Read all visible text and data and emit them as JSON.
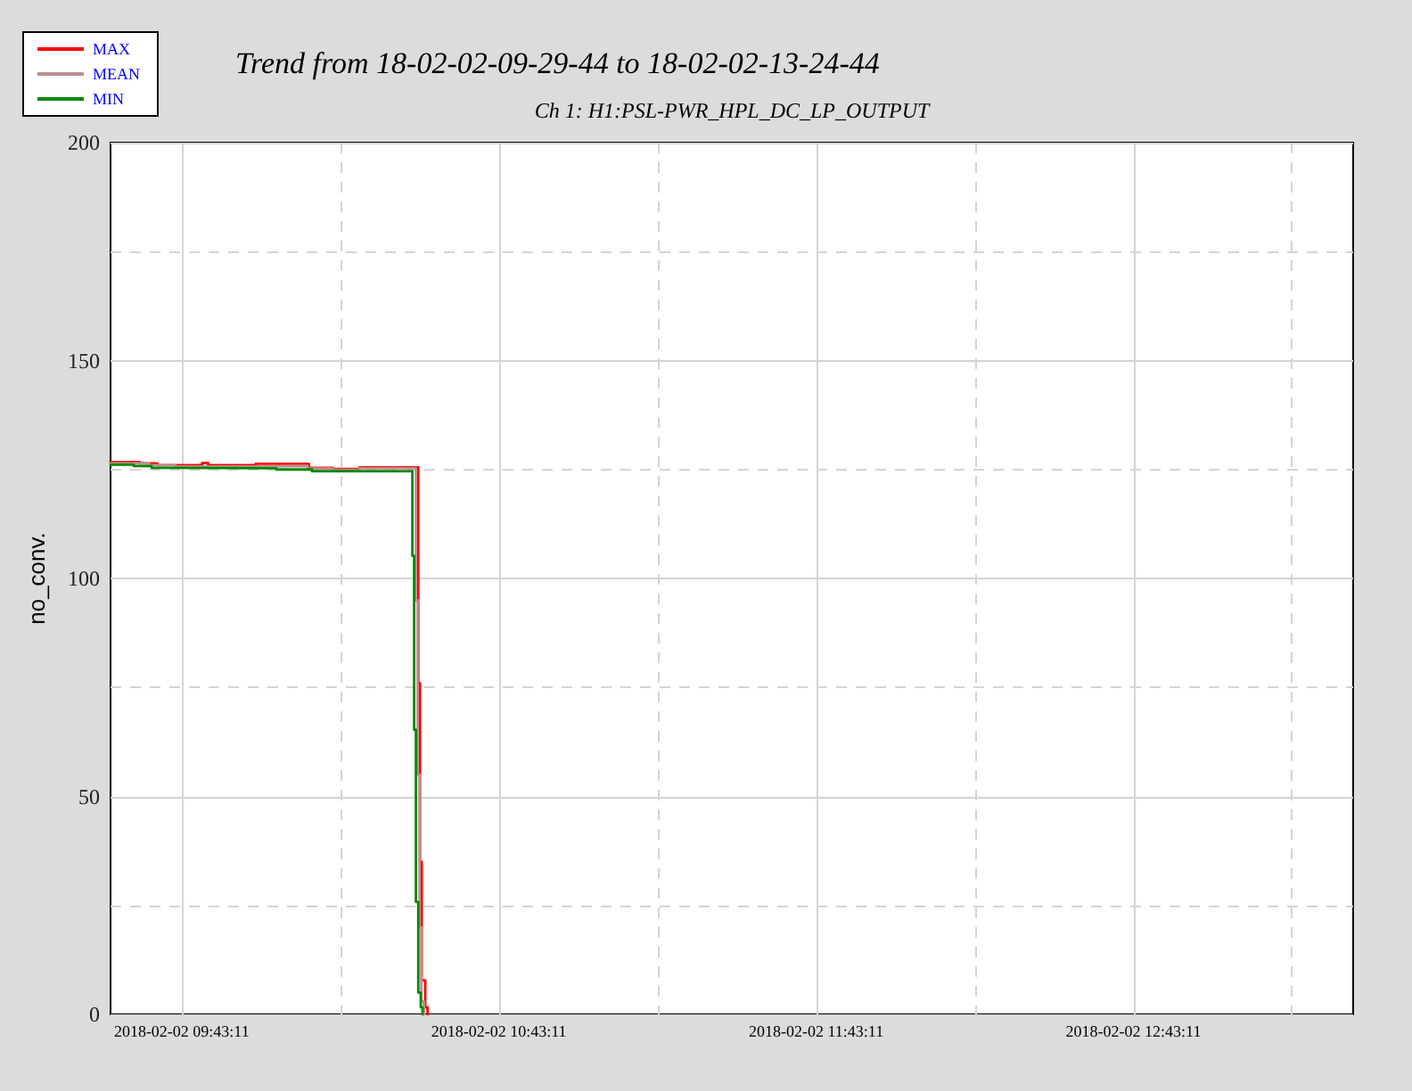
{
  "chart_data": {
    "type": "step",
    "title": "Trend from 18-02-02-09-29-44 to 18-02-02-13-24-44",
    "subtitle": "Ch 1: H1:PSL-PWR_HPL_DC_LP_OUTPUT",
    "ylabel": "no_conv.",
    "series": [
      {
        "name": "MAX",
        "color": "#ff0000",
        "x": [
          "2018-02-02T09:29:44",
          "2018-02-02T09:35:14",
          "2018-02-02T09:38:36",
          "2018-02-02T09:47:03",
          "2018-02-02T09:48:11",
          "2018-02-02T09:57:09",
          "2018-02-02T10:07:15",
          "2018-02-02T10:11:45",
          "2018-02-02T10:16:49",
          "2018-02-02T10:27:56",
          "2018-02-02T10:28:15",
          "2018-02-02T10:28:35",
          "2018-02-02T10:29:15",
          "2018-02-02T10:29:41"
        ],
        "values": [
          126.7,
          126.4,
          126.0,
          126.5,
          126.0,
          126.3,
          125.4,
          125.1,
          125.5,
          76.0,
          35.0,
          7.8,
          1.6,
          0
        ]
      },
      {
        "name": "MEAN",
        "color": "#bc8f8f",
        "x": [
          "2018-02-02T09:29:44",
          "2018-02-02T09:37:00",
          "2018-02-02T09:42:00",
          "2018-02-02T09:57:00",
          "2018-02-02T10:07:00",
          "2018-02-02T10:11:45",
          "2018-02-02T10:16:49",
          "2018-02-02T10:27:29",
          "2018-02-02T10:27:49",
          "2018-02-02T10:28:10",
          "2018-02-02T10:28:30",
          "2018-02-02T10:29:00"
        ],
        "values": [
          126.4,
          126.0,
          125.7,
          125.8,
          125.2,
          124.9,
          125.3,
          95.0,
          55.0,
          20.0,
          3.0,
          0
        ]
      },
      {
        "name": "MIN",
        "color": "#008800",
        "x": [
          "2018-02-02T09:29:44",
          "2018-02-02T09:34:07",
          "2018-02-02T09:37:29",
          "2018-02-02T09:41:58",
          "2018-02-02T10:01:06",
          "2018-02-02T10:07:50",
          "2018-02-02T10:26:49",
          "2018-02-02T10:27:09",
          "2018-02-02T10:27:29",
          "2018-02-02T10:27:56",
          "2018-02-02T10:28:24",
          "2018-02-02T10:28:44"
        ],
        "values": [
          126.1,
          125.8,
          125.4,
          125.3,
          125.0,
          124.6,
          105.2,
          65.3,
          25.8,
          5.0,
          1.6,
          0
        ]
      }
    ],
    "xlim": [
      "2018-02-02T09:29:44",
      "2018-02-02T13:24:44"
    ],
    "xticks": [
      {
        "value": "2018-02-02T09:43:11",
        "label": "2018-02-02 09:43:11"
      },
      {
        "value": "2018-02-02T10:13:11",
        "label": null
      },
      {
        "value": "2018-02-02T10:43:11",
        "label": "2018-02-02 10:43:11"
      },
      {
        "value": "2018-02-02T11:13:11",
        "label": null
      },
      {
        "value": "2018-02-02T11:43:11",
        "label": "2018-02-02 11:43:11"
      },
      {
        "value": "2018-02-02T12:13:11",
        "label": null
      },
      {
        "value": "2018-02-02T12:43:11",
        "label": "2018-02-02 12:43:11"
      },
      {
        "value": "2018-02-02T13:13:11",
        "label": null
      }
    ],
    "ylim": [
      0,
      200
    ],
    "yticks": [
      0,
      {
        "value": 25,
        "label": null
      },
      50,
      {
        "value": 75,
        "label": null
      },
      100,
      {
        "value": 125,
        "label": null
      },
      150,
      {
        "value": 175,
        "label": null
      },
      200
    ],
    "grid": true,
    "legend": "top left",
    "marker": "none",
    "line_style": "solid"
  }
}
